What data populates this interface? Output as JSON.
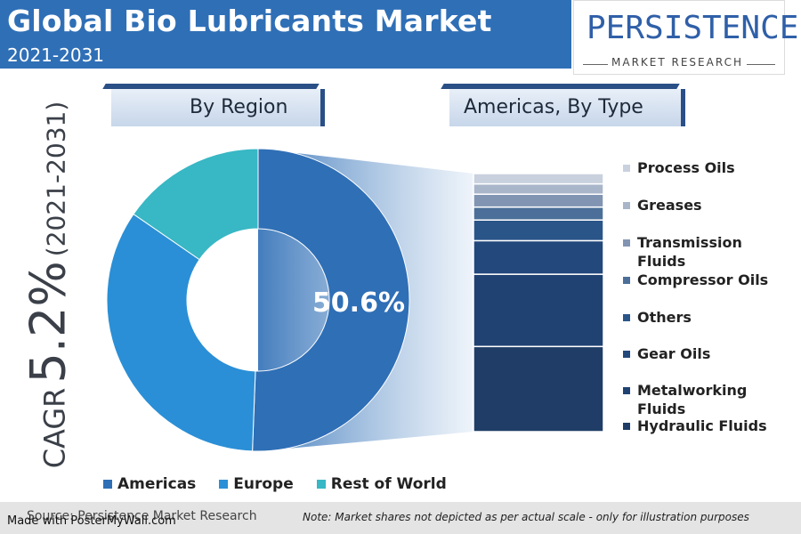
{
  "header": {
    "title": "Global Bio Lubricants Market",
    "subtitle": "2021-2031"
  },
  "logo": {
    "name": "PERSISTENCE",
    "tagline": "MARKET RESEARCH"
  },
  "sections": {
    "region_title": "By Region",
    "type_title": "Americas, By Type"
  },
  "cagr": {
    "label": "CAGR",
    "value": "5.2%",
    "period": "(2021-2031)"
  },
  "colors": {
    "americas": "#2f6fb6",
    "europe": "#2a8fd6",
    "rest_of_world": "#38b7c4",
    "banner": "#2f6fb6",
    "bar_dark": "#1f3f6b"
  },
  "chart_data": [
    {
      "type": "pie",
      "variant": "donut",
      "categories": [
        "Americas",
        "Europe",
        "Rest of World"
      ],
      "values": [
        50.6,
        34.0,
        15.4
      ],
      "data_labels": [
        "50.6%",
        "",
        ""
      ],
      "legend_position": "bottom"
    },
    {
      "type": "bar",
      "variant": "stacked-100",
      "categories": [
        "Hydraulic Fluids",
        "Metalworking Fluids",
        "Gear Oils",
        "Others",
        "Compressor Oils",
        "Transmission Fluids",
        "Greases",
        "Process Oils"
      ],
      "values": [
        33,
        28,
        13,
        8,
        5,
        5,
        4,
        4
      ],
      "colors": [
        "#1f3d66",
        "#1f4272",
        "#22487c",
        "#2a5589",
        "#4b6f98",
        "#8195b3",
        "#a9b6c9",
        "#c9d1de"
      ],
      "legend_position": "right"
    }
  ],
  "region_legend": [
    {
      "label": "Americas"
    },
    {
      "label": "Europe"
    },
    {
      "label": "Rest of World"
    }
  ],
  "type_legend": [
    {
      "label": "Process Oils"
    },
    {
      "label": "Greases"
    },
    {
      "label": "Transmission Fluids"
    },
    {
      "label": "Compressor Oils"
    },
    {
      "label": "Others"
    },
    {
      "label": "Gear Oils"
    },
    {
      "label": "Metalworking Fluids"
    },
    {
      "label": "Hydraulic Fluids"
    }
  ],
  "footer": {
    "source": "Source: Persistence Market Research",
    "note": "Note: Market shares not depicted as per actual scale - only for illustration purposes",
    "watermark": "Made with PosterMyWall.com"
  }
}
